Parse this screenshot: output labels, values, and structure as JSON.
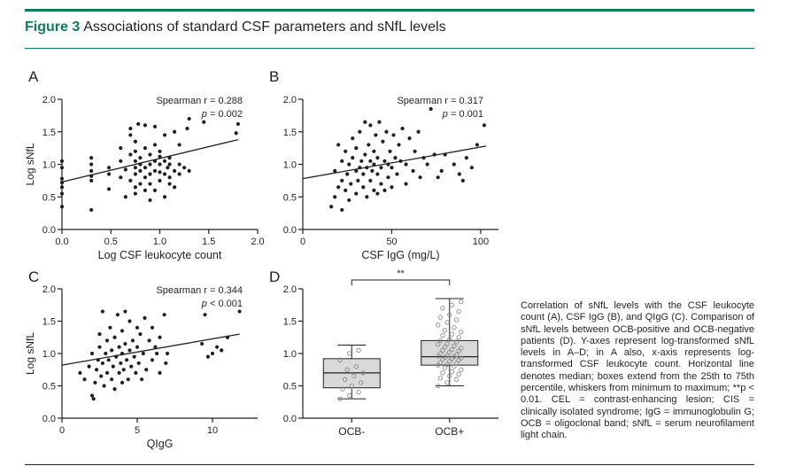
{
  "figure": {
    "label": "Figure 3",
    "title": "Associations of standard CSF parameters and sNfL levels",
    "caption": "Correlation of sNfL levels with the CSF leukocyte count (A), CSF IgG (B), and QIgG (C). Comparison of sNfL levels between OCB-positive and OCB-negative patients (D). Y-axes represent log-transformed sNfL levels in A–D; in A also, x-axis represents log-transformed CSF leukocyte count. Horizontal line denotes median; boxes extend from the 25th to 75th percentile, whiskers from minimum to maximum; **p < 0.01. CEL = contrast-enhancing lesion; CIS = clinically isolated syndrome; IgG = immunoglobulin G; OCB = oligoclonal band; sNfL = serum neurofilament light chain."
  },
  "chart_data": [
    {
      "panel": "A",
      "type": "scatter",
      "xlabel": "Log CSF leukocyte count",
      "ylabel": "Log sNfL",
      "xlim": [
        0,
        2.0
      ],
      "ylim": [
        0,
        2.0
      ],
      "xticks": [
        "0.0",
        "0.5",
        "1.0",
        "1.5",
        "2.0"
      ],
      "yticks": [
        "0.0",
        "0.5",
        "1.0",
        "1.5",
        "2.0"
      ],
      "annotation": [
        "Spearman r = 0.288",
        "p = 0.002"
      ],
      "fit_line": [
        [
          0,
          0.73
        ],
        [
          1.8,
          1.38
        ]
      ],
      "points": [
        [
          0.0,
          0.35
        ],
        [
          0.0,
          0.55
        ],
        [
          0.0,
          0.65
        ],
        [
          0.0,
          0.72
        ],
        [
          0.0,
          0.78
        ],
        [
          0.0,
          0.95
        ],
        [
          0.0,
          1.05
        ],
        [
          0.3,
          0.3
        ],
        [
          0.3,
          0.75
        ],
        [
          0.3,
          0.82
        ],
        [
          0.3,
          0.9
        ],
        [
          0.3,
          1.0
        ],
        [
          0.3,
          1.1
        ],
        [
          0.48,
          0.62
        ],
        [
          0.48,
          0.85
        ],
        [
          0.48,
          0.95
        ],
        [
          0.6,
          0.8
        ],
        [
          0.6,
          1.05
        ],
        [
          0.6,
          1.25
        ],
        [
          0.65,
          0.5
        ],
        [
          0.65,
          0.92
        ],
        [
          0.7,
          0.75
        ],
        [
          0.7,
          1.15
        ],
        [
          0.7,
          1.45
        ],
        [
          0.7,
          1.55
        ],
        [
          0.75,
          0.55
        ],
        [
          0.75,
          0.65
        ],
        [
          0.75,
          0.85
        ],
        [
          0.75,
          0.95
        ],
        [
          0.75,
          1.05
        ],
        [
          0.75,
          1.2
        ],
        [
          0.75,
          1.35
        ],
        [
          0.78,
          1.62
        ],
        [
          0.8,
          0.7
        ],
        [
          0.8,
          0.9
        ],
        [
          0.8,
          1.0
        ],
        [
          0.8,
          1.1
        ],
        [
          0.85,
          0.6
        ],
        [
          0.85,
          0.8
        ],
        [
          0.85,
          0.95
        ],
        [
          0.85,
          1.25
        ],
        [
          0.85,
          1.6
        ],
        [
          0.9,
          0.45
        ],
        [
          0.9,
          0.7
        ],
        [
          0.9,
          0.85
        ],
        [
          0.9,
          1.0
        ],
        [
          0.9,
          1.15
        ],
        [
          0.95,
          0.6
        ],
        [
          0.95,
          0.9
        ],
        [
          0.95,
          1.05
        ],
        [
          0.95,
          1.3
        ],
        [
          0.95,
          1.58
        ],
        [
          1.0,
          0.75
        ],
        [
          1.0,
          0.88
        ],
        [
          1.0,
          1.0
        ],
        [
          1.0,
          1.12
        ],
        [
          1.0,
          1.2
        ],
        [
          1.05,
          0.5
        ],
        [
          1.05,
          0.85
        ],
        [
          1.05,
          1.05
        ],
        [
          1.05,
          1.45
        ],
        [
          1.08,
          0.95
        ],
        [
          1.1,
          0.7
        ],
        [
          1.1,
          0.8
        ],
        [
          1.1,
          1.0
        ],
        [
          1.1,
          1.1
        ],
        [
          1.15,
          0.65
        ],
        [
          1.15,
          0.9
        ],
        [
          1.15,
          1.5
        ],
        [
          1.2,
          0.85
        ],
        [
          1.2,
          1.0
        ],
        [
          1.2,
          1.3
        ],
        [
          1.25,
          0.95
        ],
        [
          1.28,
          1.55
        ],
        [
          1.3,
          1.7
        ],
        [
          1.3,
          0.9
        ],
        [
          1.45,
          1.65
        ],
        [
          1.78,
          1.48
        ],
        [
          1.8,
          1.62
        ]
      ]
    },
    {
      "panel": "B",
      "type": "scatter",
      "xlabel": "CSF IgG (mg/L)",
      "ylabel": "",
      "xlim": [
        0,
        110
      ],
      "ylim": [
        0,
        2.0
      ],
      "xticks": [
        "0",
        "50",
        "100"
      ],
      "yticks": [
        "0.0",
        "0.5",
        "1.0",
        "1.5",
        "2.0"
      ],
      "annotation": [
        "Spearman r = 0.317",
        "p = 0.001"
      ],
      "fit_line": [
        [
          0,
          0.78
        ],
        [
          103,
          1.28
        ]
      ],
      "points": [
        [
          16,
          0.35
        ],
        [
          18,
          0.5
        ],
        [
          18,
          0.9
        ],
        [
          20,
          0.65
        ],
        [
          20,
          1.3
        ],
        [
          22,
          0.3
        ],
        [
          22,
          0.75
        ],
        [
          22,
          1.05
        ],
        [
          24,
          0.6
        ],
        [
          24,
          1.2
        ],
        [
          25,
          0.85
        ],
        [
          26,
          0.45
        ],
        [
          26,
          1.0
        ],
        [
          27,
          0.7
        ],
        [
          28,
          1.1
        ],
        [
          28,
          1.4
        ],
        [
          30,
          0.55
        ],
        [
          30,
          0.9
        ],
        [
          30,
          1.25
        ],
        [
          31,
          0.75
        ],
        [
          32,
          0.95
        ],
        [
          32,
          1.5
        ],
        [
          33,
          1.05
        ],
        [
          34,
          0.65
        ],
        [
          34,
          0.85
        ],
        [
          35,
          1.15
        ],
        [
          35,
          1.65
        ],
        [
          36,
          0.5
        ],
        [
          36,
          0.95
        ],
        [
          37,
          1.3
        ],
        [
          38,
          0.75
        ],
        [
          38,
          1.05
        ],
        [
          38,
          1.6
        ],
        [
          39,
          0.9
        ],
        [
          40,
          0.6
        ],
        [
          40,
          1.0
        ],
        [
          40,
          1.2
        ],
        [
          41,
          1.45
        ],
        [
          42,
          0.55
        ],
        [
          42,
          0.85
        ],
        [
          42,
          1.1
        ],
        [
          43,
          1.65
        ],
        [
          44,
          0.7
        ],
        [
          44,
          0.95
        ],
        [
          45,
          1.35
        ],
        [
          46,
          0.6
        ],
        [
          46,
          1.05
        ],
        [
          47,
          1.5
        ],
        [
          48,
          0.8
        ],
        [
          48,
          1.0
        ],
        [
          49,
          1.2
        ],
        [
          50,
          0.65
        ],
        [
          50,
          0.95
        ],
        [
          51,
          1.45
        ],
        [
          52,
          1.1
        ],
        [
          53,
          0.85
        ],
        [
          54,
          1.3
        ],
        [
          55,
          1.05
        ],
        [
          56,
          1.55
        ],
        [
          58,
          0.7
        ],
        [
          58,
          1.0
        ],
        [
          60,
          1.4
        ],
        [
          62,
          0.9
        ],
        [
          63,
          1.2
        ],
        [
          65,
          1.5
        ],
        [
          66,
          0.8
        ],
        [
          68,
          1.1
        ],
        [
          70,
          1.0
        ],
        [
          72,
          1.85
        ],
        [
          74,
          1.15
        ],
        [
          76,
          0.8
        ],
        [
          78,
          0.9
        ],
        [
          80,
          1.15
        ],
        [
          85,
          1.0
        ],
        [
          88,
          0.85
        ],
        [
          90,
          0.75
        ],
        [
          92,
          1.1
        ],
        [
          95,
          0.95
        ],
        [
          98,
          1.3
        ],
        [
          102,
          1.6
        ]
      ]
    },
    {
      "panel": "C",
      "type": "scatter",
      "xlabel": "QIgG",
      "ylabel": "Log sNfL",
      "xlim": [
        0,
        13
      ],
      "ylim": [
        0,
        2.0
      ],
      "xticks": [
        "0",
        "5",
        "10"
      ],
      "yticks": [
        "0.0",
        "0.5",
        "1.0",
        "1.5",
        "2.0"
      ],
      "annotation": [
        "Spearman r = 0.344",
        "p < 0.001"
      ],
      "fit_line": [
        [
          0,
          0.82
        ],
        [
          11.8,
          1.3
        ]
      ],
      "points": [
        [
          1.2,
          0.7
        ],
        [
          1.5,
          0.6
        ],
        [
          1.8,
          0.8
        ],
        [
          2.0,
          0.35
        ],
        [
          2.0,
          1.0
        ],
        [
          2.1,
          0.3
        ],
        [
          2.2,
          0.55
        ],
        [
          2.3,
          0.75
        ],
        [
          2.4,
          0.9
        ],
        [
          2.5,
          1.1
        ],
        [
          2.5,
          1.3
        ],
        [
          2.6,
          0.65
        ],
        [
          2.7,
          0.85
        ],
        [
          2.7,
          1.65
        ],
        [
          2.8,
          0.5
        ],
        [
          2.9,
          1.0
        ],
        [
          3.0,
          0.7
        ],
        [
          3.0,
          1.2
        ],
        [
          3.1,
          0.9
        ],
        [
          3.2,
          1.4
        ],
        [
          3.3,
          0.6
        ],
        [
          3.3,
          1.05
        ],
        [
          3.4,
          0.8
        ],
        [
          3.5,
          0.45
        ],
        [
          3.5,
          1.25
        ],
        [
          3.6,
          0.95
        ],
        [
          3.7,
          1.6
        ],
        [
          3.8,
          0.7
        ],
        [
          3.8,
          1.1
        ],
        [
          3.9,
          0.85
        ],
        [
          4.0,
          0.55
        ],
        [
          4.0,
          1.0
        ],
        [
          4.0,
          1.35
        ],
        [
          4.1,
          0.75
        ],
        [
          4.2,
          1.15
        ],
        [
          4.2,
          1.65
        ],
        [
          4.3,
          0.9
        ],
        [
          4.4,
          0.6
        ],
        [
          4.5,
          1.05
        ],
        [
          4.5,
          1.5
        ],
        [
          4.6,
          0.8
        ],
        [
          4.7,
          1.2
        ],
        [
          4.8,
          0.95
        ],
        [
          4.9,
          0.7
        ],
        [
          5.0,
          1.1
        ],
        [
          5.0,
          1.4
        ],
        [
          5.1,
          0.85
        ],
        [
          5.2,
          1.3
        ],
        [
          5.3,
          0.6
        ],
        [
          5.4,
          1.0
        ],
        [
          5.5,
          1.55
        ],
        [
          5.6,
          0.75
        ],
        [
          5.8,
          1.2
        ],
        [
          6.0,
          0.9
        ],
        [
          6.0,
          1.4
        ],
        [
          6.2,
          1.1
        ],
        [
          6.3,
          1.0
        ],
        [
          6.5,
          0.7
        ],
        [
          6.5,
          1.25
        ],
        [
          6.8,
          1.6
        ],
        [
          6.9,
          0.85
        ],
        [
          7.0,
          1.0
        ],
        [
          9.3,
          1.15
        ],
        [
          9.5,
          1.6
        ],
        [
          9.7,
          0.95
        ],
        [
          10.0,
          1.0
        ],
        [
          10.3,
          1.1
        ],
        [
          10.6,
          1.05
        ],
        [
          11.0,
          1.25
        ],
        [
          11.8,
          1.65
        ]
      ]
    },
    {
      "panel": "D",
      "type": "box",
      "ylabel": "",
      "ylim": [
        0,
        2.0
      ],
      "yticks": [
        "0.0",
        "0.5",
        "1.0",
        "1.5",
        "2.0"
      ],
      "categories": [
        "OCB-",
        "OCB+"
      ],
      "significance": "**",
      "boxes": [
        {
          "name": "OCB-",
          "min": 0.3,
          "q1": 0.47,
          "median": 0.7,
          "q3": 0.92,
          "max": 1.13
        },
        {
          "name": "OCB+",
          "min": 0.5,
          "q1": 0.82,
          "median": 0.95,
          "q3": 1.2,
          "max": 1.85
        }
      ],
      "points": [
        [
          0.3,
          0.35,
          0.4,
          0.45,
          0.5,
          0.55,
          0.6,
          0.65,
          0.7,
          0.75,
          0.8,
          0.9,
          1.0,
          1.05
        ],
        [
          0.5,
          0.55,
          0.6,
          0.62,
          0.65,
          0.68,
          0.7,
          0.72,
          0.75,
          0.78,
          0.8,
          0.82,
          0.83,
          0.85,
          0.86,
          0.88,
          0.9,
          0.91,
          0.92,
          0.93,
          0.94,
          0.95,
          0.96,
          0.97,
          0.98,
          1.0,
          1.02,
          1.04,
          1.05,
          1.06,
          1.08,
          1.1,
          1.12,
          1.14,
          1.15,
          1.18,
          1.2,
          1.22,
          1.25,
          1.28,
          1.3,
          1.33,
          1.36,
          1.4,
          1.44,
          1.48,
          1.52,
          1.56,
          1.6,
          1.65,
          1.7,
          1.75,
          1.8
        ]
      ]
    }
  ]
}
